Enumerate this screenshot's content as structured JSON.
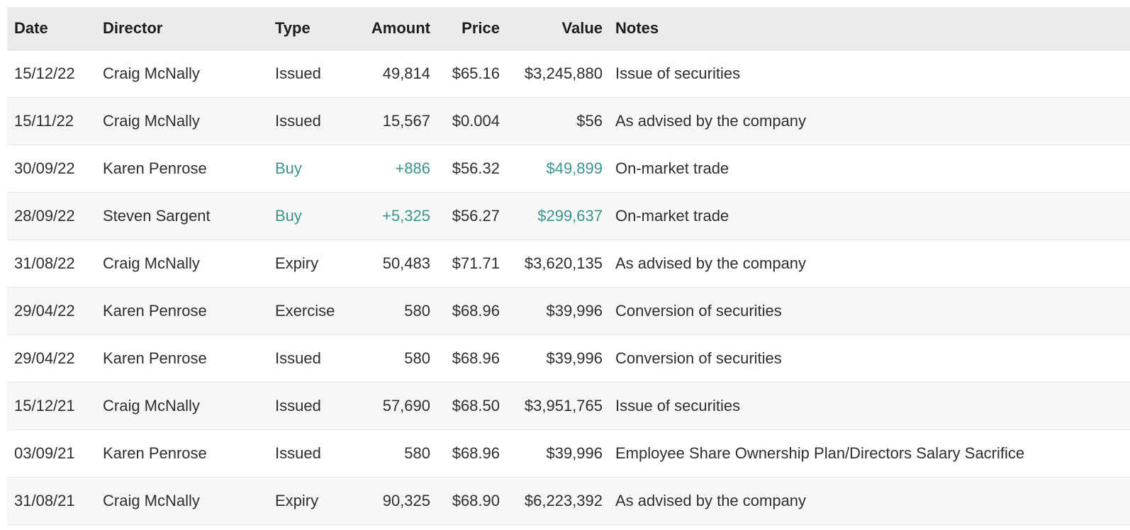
{
  "colors": {
    "accent_teal": "#3c948b",
    "header_bg": "#ebebeb",
    "row_alt_bg": "#f7f7f7",
    "text": "#2e2e2e"
  },
  "table": {
    "columns": [
      {
        "key": "date",
        "label": "Date"
      },
      {
        "key": "director",
        "label": "Director"
      },
      {
        "key": "type",
        "label": "Type"
      },
      {
        "key": "amount",
        "label": "Amount"
      },
      {
        "key": "price",
        "label": "Price"
      },
      {
        "key": "value",
        "label": "Value"
      },
      {
        "key": "notes",
        "label": "Notes"
      }
    ],
    "rows": [
      {
        "date": "15/12/22",
        "director": "Craig McNally",
        "type": "Issued",
        "amount": "49,814",
        "price": "$65.16",
        "value": "$3,245,880",
        "notes": "Issue of securities",
        "buy_highlight": false
      },
      {
        "date": "15/11/22",
        "director": "Craig McNally",
        "type": "Issued",
        "amount": "15,567",
        "price": "$0.004",
        "value": "$56",
        "notes": "As advised by the company",
        "buy_highlight": false
      },
      {
        "date": "30/09/22",
        "director": "Karen Penrose",
        "type": "Buy",
        "amount": "+886",
        "price": "$56.32",
        "value": "$49,899",
        "notes": "On-market trade",
        "buy_highlight": true
      },
      {
        "date": "28/09/22",
        "director": "Steven Sargent",
        "type": "Buy",
        "amount": "+5,325",
        "price": "$56.27",
        "value": "$299,637",
        "notes": "On-market trade",
        "buy_highlight": true
      },
      {
        "date": "31/08/22",
        "director": "Craig McNally",
        "type": "Expiry",
        "amount": "50,483",
        "price": "$71.71",
        "value": "$3,620,135",
        "notes": "As advised by the company",
        "buy_highlight": false
      },
      {
        "date": "29/04/22",
        "director": "Karen Penrose",
        "type": "Exercise",
        "amount": "580",
        "price": "$68.96",
        "value": "$39,996",
        "notes": "Conversion of securities",
        "buy_highlight": false
      },
      {
        "date": "29/04/22",
        "director": "Karen Penrose",
        "type": "Issued",
        "amount": "580",
        "price": "$68.96",
        "value": "$39,996",
        "notes": "Conversion of securities",
        "buy_highlight": false
      },
      {
        "date": "15/12/21",
        "director": "Craig McNally",
        "type": "Issued",
        "amount": "57,690",
        "price": "$68.50",
        "value": "$3,951,765",
        "notes": "Issue of securities",
        "buy_highlight": false
      },
      {
        "date": "03/09/21",
        "director": "Karen Penrose",
        "type": "Issued",
        "amount": "580",
        "price": "$68.96",
        "value": "$39,996",
        "notes": "Employee Share Ownership Plan/Directors Salary Sacrifice",
        "buy_highlight": false
      },
      {
        "date": "31/08/21",
        "director": "Craig McNally",
        "type": "Expiry",
        "amount": "90,325",
        "price": "$68.90",
        "value": "$6,223,392",
        "notes": "As advised by the company",
        "buy_highlight": false
      }
    ]
  }
}
